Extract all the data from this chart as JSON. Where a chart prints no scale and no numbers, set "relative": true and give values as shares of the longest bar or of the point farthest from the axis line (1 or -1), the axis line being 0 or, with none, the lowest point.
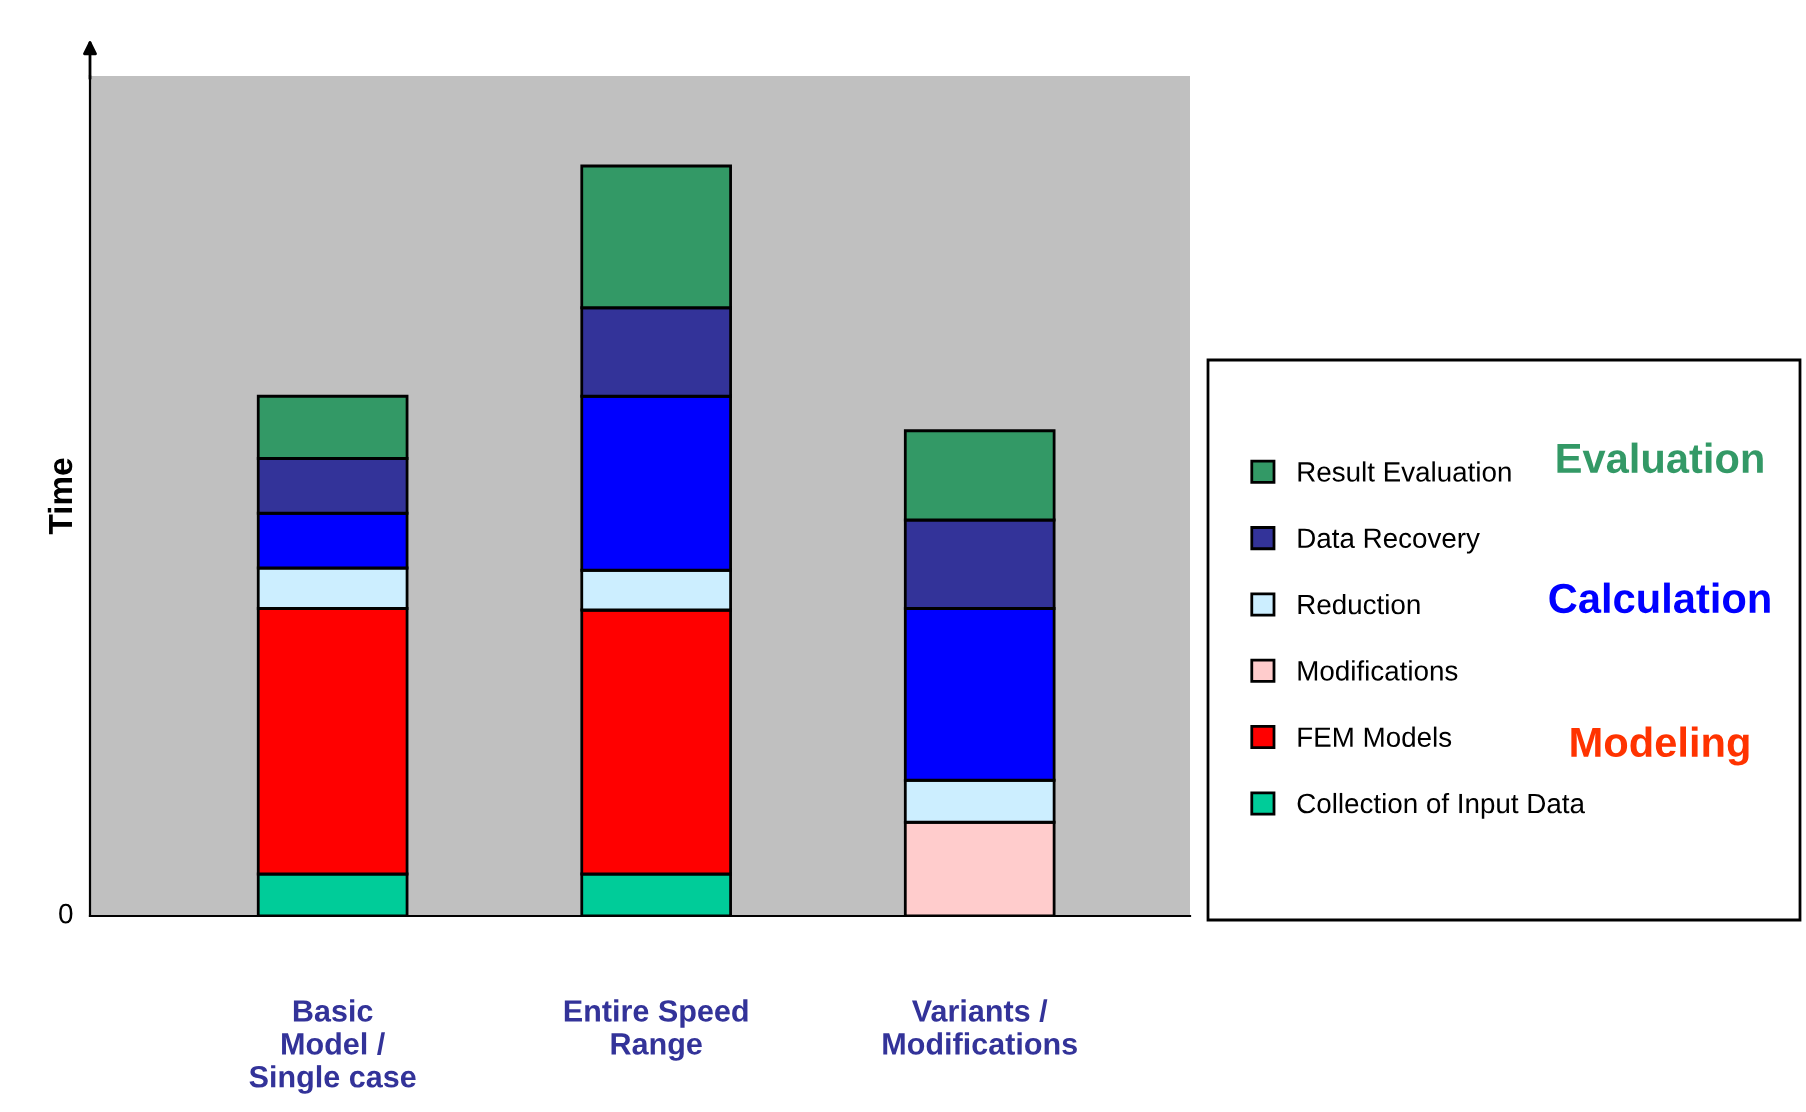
{
  "chart_data": {
    "type": "bar",
    "stacked": true,
    "relative": true,
    "ylabel": "Time",
    "categories": [
      "Basic\nModel /\nSingle case",
      "Entire Speed\nRange",
      "Variants /\nModifications"
    ],
    "series": [
      {
        "name": "Collection of Input Data",
        "color": "#00cc99",
        "values": [
          0.056,
          0.056,
          0
        ]
      },
      {
        "name": "FEM Models",
        "color": "#ff0000",
        "values": [
          0.354,
          0.352,
          0
        ]
      },
      {
        "name": "Modifications",
        "color": "#ffcccc",
        "values": [
          0,
          0,
          0.125
        ]
      },
      {
        "name": "Reduction",
        "color": "#cceeff",
        "values": [
          0.054,
          0.053,
          0.056
        ]
      },
      {
        "color": "#0000ff",
        "values": [
          0.073,
          0.232,
          0.229
        ]
      },
      {
        "name": "Data Recovery",
        "color": "#333399",
        "values": [
          0.073,
          0.118,
          0.118
        ]
      },
      {
        "name": "Result Evaluation",
        "color": "#339966",
        "values": [
          0.083,
          0.189,
          0.119
        ]
      }
    ],
    "legend": "right",
    "annotations": [
      "0",
      "Evaluation",
      "Calculation",
      "Modeling"
    ]
  }
}
